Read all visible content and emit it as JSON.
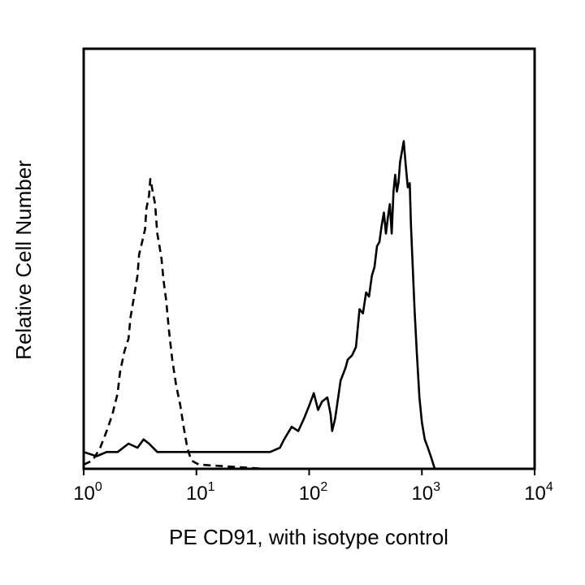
{
  "chart_data": {
    "type": "line",
    "title": "",
    "xlabel": "PE CD91, with isotype control",
    "ylabel": "Relative Cell Number",
    "x_scale": "log",
    "xlim": [
      1,
      10000
    ],
    "ylim": [
      0,
      100
    ],
    "grid": false,
    "x_ticks": [
      {
        "value": 1,
        "base": "10",
        "exp": "0"
      },
      {
        "value": 10,
        "base": "10",
        "exp": "1"
      },
      {
        "value": 100,
        "base": "10",
        "exp": "2"
      },
      {
        "value": 1000,
        "base": "10",
        "exp": "3"
      },
      {
        "value": 10000,
        "base": "10",
        "exp": "4"
      }
    ],
    "series": [
      {
        "style": "dashed",
        "color": "#000000",
        "points": [
          [
            1.0,
            1
          ],
          [
            1.2,
            2
          ],
          [
            1.4,
            5
          ],
          [
            1.6,
            9
          ],
          [
            1.8,
            13
          ],
          [
            2.0,
            18
          ],
          [
            2.1,
            23
          ],
          [
            2.3,
            28
          ],
          [
            2.5,
            31
          ],
          [
            2.6,
            36
          ],
          [
            2.8,
            41
          ],
          [
            3.0,
            46
          ],
          [
            3.1,
            51
          ],
          [
            3.3,
            54
          ],
          [
            3.5,
            57
          ],
          [
            3.6,
            62
          ],
          [
            3.8,
            65
          ],
          [
            3.9,
            69
          ],
          [
            4.1,
            66
          ],
          [
            4.3,
            63
          ],
          [
            4.5,
            56
          ],
          [
            4.7,
            53
          ],
          [
            4.9,
            50
          ],
          [
            5.1,
            45
          ],
          [
            5.4,
            40
          ],
          [
            5.7,
            33
          ],
          [
            6.1,
            26
          ],
          [
            6.6,
            20
          ],
          [
            7.2,
            15
          ],
          [
            7.7,
            10
          ],
          [
            8.3,
            5
          ],
          [
            9.0,
            2
          ],
          [
            10.5,
            1
          ],
          [
            40,
            0
          ],
          [
            100,
            0
          ],
          [
            1000,
            0
          ],
          [
            1300,
            0
          ]
        ]
      },
      {
        "style": "solid",
        "color": "#000000",
        "points": [
          [
            1.0,
            4
          ],
          [
            1.3,
            3
          ],
          [
            1.6,
            4
          ],
          [
            2.0,
            4
          ],
          [
            2.5,
            6
          ],
          [
            3.0,
            5
          ],
          [
            3.4,
            7
          ],
          [
            3.8,
            6
          ],
          [
            4.5,
            4
          ],
          [
            6,
            4
          ],
          [
            8,
            4
          ],
          [
            10,
            4
          ],
          [
            15,
            4
          ],
          [
            20,
            4
          ],
          [
            30,
            4
          ],
          [
            45,
            4
          ],
          [
            55,
            5
          ],
          [
            60,
            7
          ],
          [
            70,
            10
          ],
          [
            80,
            9
          ],
          [
            90,
            12
          ],
          [
            100,
            15
          ],
          [
            110,
            18
          ],
          [
            120,
            14
          ],
          [
            130,
            16
          ],
          [
            145,
            17
          ],
          [
            155,
            13
          ],
          [
            160,
            9
          ],
          [
            170,
            12
          ],
          [
            190,
            21
          ],
          [
            210,
            24
          ],
          [
            220,
            26
          ],
          [
            240,
            27
          ],
          [
            260,
            29
          ],
          [
            280,
            38
          ],
          [
            300,
            37
          ],
          [
            320,
            42
          ],
          [
            340,
            41
          ],
          [
            360,
            46
          ],
          [
            380,
            48
          ],
          [
            400,
            53
          ],
          [
            420,
            54
          ],
          [
            440,
            58
          ],
          [
            460,
            61
          ],
          [
            480,
            56
          ],
          [
            500,
            60
          ],
          [
            520,
            63
          ],
          [
            540,
            56
          ],
          [
            560,
            66
          ],
          [
            580,
            70
          ],
          [
            600,
            66
          ],
          [
            620,
            68
          ],
          [
            640,
            73
          ],
          [
            660,
            75
          ],
          [
            690,
            78
          ],
          [
            720,
            72
          ],
          [
            750,
            67
          ],
          [
            780,
            68
          ],
          [
            800,
            58
          ],
          [
            830,
            48
          ],
          [
            860,
            38
          ],
          [
            900,
            28
          ],
          [
            950,
            17
          ],
          [
            1000,
            11
          ],
          [
            1060,
            7
          ],
          [
            1130,
            5
          ],
          [
            1200,
            3
          ],
          [
            1300,
            0
          ]
        ]
      }
    ]
  }
}
